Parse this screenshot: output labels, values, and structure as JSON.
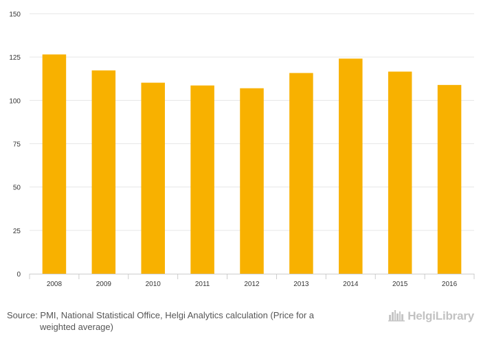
{
  "chart_data": {
    "type": "bar",
    "categories": [
      "2008",
      "2009",
      "2010",
      "2011",
      "2012",
      "2013",
      "2014",
      "2015",
      "2016"
    ],
    "values": [
      126.5,
      117.3,
      110.2,
      108.6,
      107.0,
      115.8,
      124.1,
      116.6,
      108.9
    ],
    "ylim": [
      0,
      150
    ],
    "yticks": [
      0,
      25,
      50,
      75,
      100,
      125,
      150
    ],
    "title": "",
    "xlabel": "",
    "ylabel": "",
    "grid": true,
    "bar_color": "#f8b100"
  },
  "footer": {
    "source_line1": "Source: PMI, National Statistical Office, Helgi Analytics calculation (Price for a",
    "source_line2": "weighted average)",
    "brand": "HelgiLibrary"
  },
  "brand_icon": "city-skyline-icon"
}
